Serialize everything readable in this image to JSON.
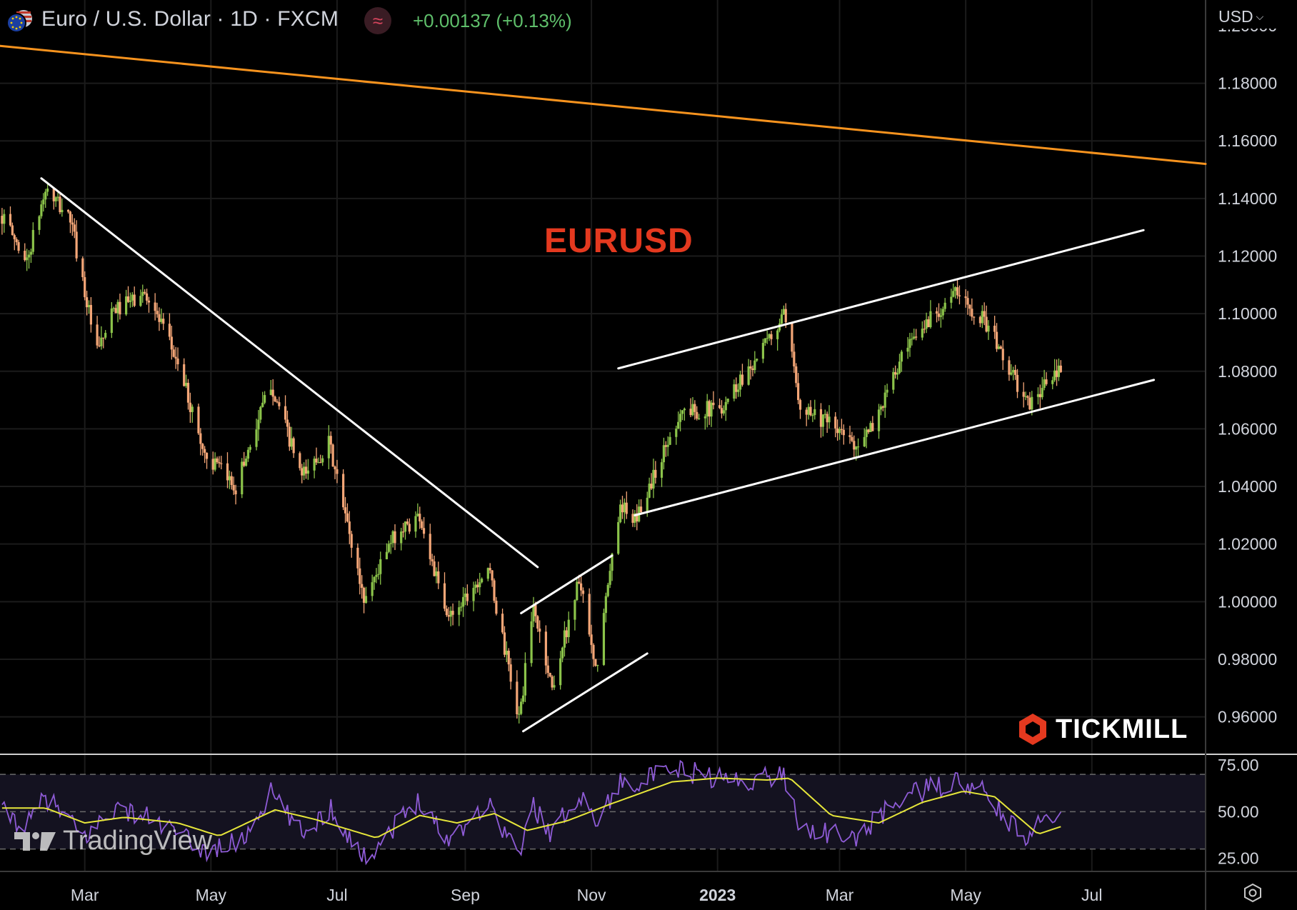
{
  "header": {
    "title": "Euro / U.S. Dollar · 1D · FXCM",
    "indicator_glyph": "≈",
    "change": "+0.00137 (+0.13%)",
    "currency": "USD"
  },
  "annotations": {
    "symbol_label": "EURUSD",
    "broker_logo": "TICKMILL",
    "platform_logo": "TradingView"
  },
  "colors": {
    "background": "#000000",
    "up": "#8bc34a",
    "down": "#f4a677",
    "trendline_orange": "#f7931e",
    "channel_lines": "#ffffff",
    "rsi": "#8e5bd6",
    "rsi_ma": "#e6e63a",
    "symbol_label": "#e4391f"
  },
  "icons": [
    "eu-us-flag-icon",
    "indicator-wave-icon",
    "chevron-down-icon",
    "tickmill-logo-icon",
    "tradingview-logo-icon",
    "settings-icon"
  ],
  "chart_data": [
    {
      "type": "candlestick",
      "symbol": "EURUSD",
      "interval": "1D",
      "source": "FXCM",
      "y_ticks": [
        "1.18000",
        "1.16000",
        "1.14000",
        "1.12000",
        "1.10000",
        "1.08000",
        "1.06000",
        "1.04000",
        "1.02000",
        "1.00000",
        "0.98000",
        "0.96000"
      ],
      "y_ticks_values": [
        1.18,
        1.16,
        1.14,
        1.12,
        1.1,
        1.08,
        1.06,
        1.04,
        1.02,
        1.0,
        0.98,
        0.96
      ],
      "ylim": [
        0.947,
        1.199
      ],
      "x_ticks": [
        "Mar",
        "May",
        "Jul",
        "Sep",
        "Nov",
        "2023",
        "Mar",
        "May",
        "Jul"
      ],
      "x_ticks_dates": [
        "2022-03-01",
        "2022-05-01",
        "2022-07-01",
        "2022-09-01",
        "2022-11-01",
        "2023-01-01",
        "2023-03-01",
        "2023-05-01",
        "2023-07-01"
      ],
      "xlim": [
        "2022-01-19",
        "2023-08-25"
      ],
      "approx_close_path": [
        [
          "2022-01-20",
          1.134
        ],
        [
          "2022-02-01",
          1.118
        ],
        [
          "2022-02-10",
          1.143
        ],
        [
          "2022-02-22",
          1.133
        ],
        [
          "2022-03-07",
          1.086
        ],
        [
          "2022-03-15",
          1.101
        ],
        [
          "2022-03-31",
          1.107
        ],
        [
          "2022-04-15",
          1.083
        ],
        [
          "2022-04-28",
          1.051
        ],
        [
          "2022-05-13",
          1.04
        ],
        [
          "2022-05-30",
          1.076
        ],
        [
          "2022-06-14",
          1.043
        ],
        [
          "2022-06-27",
          1.055
        ],
        [
          "2022-07-14",
          1.001
        ],
        [
          "2022-07-29",
          1.023
        ],
        [
          "2022-08-10",
          1.03
        ],
        [
          "2022-08-23",
          0.994
        ],
        [
          "2022-09-12",
          1.012
        ],
        [
          "2022-09-27",
          0.959
        ],
        [
          "2022-10-04",
          0.998
        ],
        [
          "2022-10-13",
          0.97
        ],
        [
          "2022-10-26",
          1.008
        ],
        [
          "2022-11-03",
          0.975
        ],
        [
          "2022-11-15",
          1.035
        ],
        [
          "2022-11-21",
          1.026
        ],
        [
          "2022-12-14",
          1.066
        ],
        [
          "2023-01-02",
          1.067
        ],
        [
          "2023-01-26",
          1.091
        ],
        [
          "2023-02-02",
          1.099
        ],
        [
          "2023-02-10",
          1.069
        ],
        [
          "2023-03-08",
          1.055
        ],
        [
          "2023-03-15",
          1.058
        ],
        [
          "2023-03-31",
          1.084
        ],
        [
          "2023-04-14",
          1.099
        ],
        [
          "2023-04-26",
          1.107
        ],
        [
          "2023-05-10",
          1.098
        ],
        [
          "2023-05-31",
          1.068
        ],
        [
          "2023-06-08",
          1.075
        ],
        [
          "2023-06-16",
          1.08
        ]
      ],
      "trendlines": [
        {
          "name": "long-term-resistance",
          "color": "orange",
          "points": [
            [
              "2022-01-19",
              1.193
            ],
            [
              "2023-08-25",
              1.152
            ]
          ]
        },
        {
          "name": "2022-downtrend",
          "color": "white",
          "points": [
            [
              "2022-02-08",
              1.147
            ],
            [
              "2022-10-06",
              1.012
            ]
          ]
        },
        {
          "name": "rising-wedge-upper",
          "color": "white",
          "points": [
            [
              "2022-09-28",
              0.996
            ],
            [
              "2022-11-11",
              1.016
            ]
          ]
        },
        {
          "name": "rising-wedge-lower",
          "color": "white",
          "points": [
            [
              "2022-09-29",
              0.955
            ],
            [
              "2022-11-28",
              0.982
            ]
          ]
        },
        {
          "name": "channel-upper",
          "color": "white",
          "points": [
            [
              "2022-11-14",
              1.081
            ],
            [
              "2023-07-26",
              1.129
            ]
          ]
        },
        {
          "name": "channel-lower",
          "color": "white",
          "points": [
            [
              "2022-11-22",
              1.03
            ],
            [
              "2023-07-31",
              1.077
            ]
          ]
        }
      ]
    },
    {
      "type": "line",
      "name": "RSI",
      "y_ticks": [
        "75.00",
        "50.00",
        "25.00"
      ],
      "y_ticks_values": [
        75,
        50,
        25
      ],
      "ylim": [
        18,
        80
      ],
      "bands": [
        70,
        50,
        30
      ],
      "rsi_path": [
        [
          "2022-01-20",
          50
        ],
        [
          "2022-02-01",
          42
        ],
        [
          "2022-02-10",
          58
        ],
        [
          "2022-03-01",
          36
        ],
        [
          "2022-03-15",
          52
        ],
        [
          "2022-04-01",
          47
        ],
        [
          "2022-04-28",
          29
        ],
        [
          "2022-05-16",
          34
        ],
        [
          "2022-05-30",
          60
        ],
        [
          "2022-06-14",
          38
        ],
        [
          "2022-06-28",
          52
        ],
        [
          "2022-07-14",
          25
        ],
        [
          "2022-08-10",
          57
        ],
        [
          "2022-08-23",
          35
        ],
        [
          "2022-09-12",
          55
        ],
        [
          "2022-09-27",
          27
        ],
        [
          "2022-10-04",
          53
        ],
        [
          "2022-10-13",
          38
        ],
        [
          "2022-10-26",
          60
        ],
        [
          "2022-11-03",
          45
        ],
        [
          "2022-11-15",
          65
        ],
        [
          "2022-12-15",
          72
        ],
        [
          "2023-01-10",
          66
        ],
        [
          "2023-02-02",
          70
        ],
        [
          "2023-02-10",
          42
        ],
        [
          "2023-03-08",
          35
        ],
        [
          "2023-03-31",
          58
        ],
        [
          "2023-04-26",
          66
        ],
        [
          "2023-05-10",
          60
        ],
        [
          "2023-05-31",
          33
        ],
        [
          "2023-06-08",
          48
        ],
        [
          "2023-06-16",
          52
        ]
      ],
      "ma_path": [
        [
          "2022-01-20",
          52
        ],
        [
          "2022-02-10",
          52
        ],
        [
          "2022-03-01",
          44
        ],
        [
          "2022-03-20",
          47
        ],
        [
          "2022-04-15",
          44
        ],
        [
          "2022-05-05",
          37
        ],
        [
          "2022-06-01",
          51
        ],
        [
          "2022-06-20",
          46
        ],
        [
          "2022-07-20",
          36
        ],
        [
          "2022-08-10",
          48
        ],
        [
          "2022-08-28",
          44
        ],
        [
          "2022-09-15",
          49
        ],
        [
          "2022-10-01",
          40
        ],
        [
          "2022-10-20",
          45
        ],
        [
          "2022-11-10",
          54
        ],
        [
          "2022-12-10",
          66
        ],
        [
          "2023-01-01",
          68
        ],
        [
          "2023-01-25",
          67
        ],
        [
          "2023-02-05",
          68
        ],
        [
          "2023-02-25",
          48
        ],
        [
          "2023-03-20",
          44
        ],
        [
          "2023-04-10",
          55
        ],
        [
          "2023-04-30",
          61
        ],
        [
          "2023-05-15",
          58
        ],
        [
          "2023-06-05",
          38
        ],
        [
          "2023-06-16",
          42
        ]
      ]
    }
  ]
}
